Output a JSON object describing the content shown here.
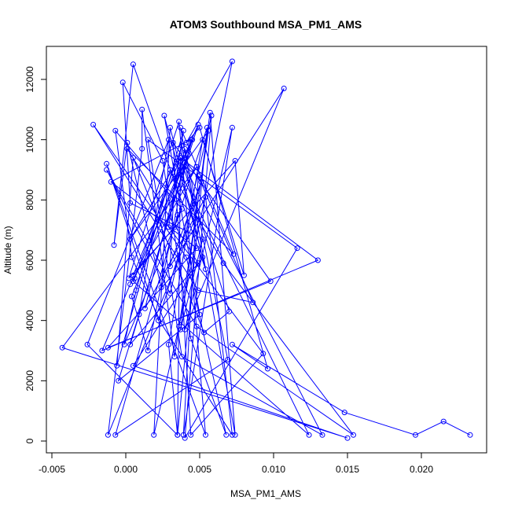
{
  "chart_data": {
    "type": "line",
    "title": "ATOM3 Southbound MSA_PM1_AMS",
    "xlabel": "MSA_PM1_AMS",
    "ylabel": "Altitude (m)",
    "xlim": [
      -0.005,
      0.023
    ],
    "ylim": [
      0,
      12500
    ],
    "xticks": [
      -0.005,
      0.0,
      0.005,
      0.01,
      0.015,
      0.02
    ],
    "xtick_labels": [
      "-0.005",
      "0.000",
      "0.005",
      "0.010",
      "0.015",
      "0.020"
    ],
    "yticks": [
      0,
      2000,
      4000,
      6000,
      8000,
      10000,
      12000
    ],
    "ytick_labels": [
      "0",
      "2000",
      "4000",
      "6000",
      "8000",
      "10000",
      "12000"
    ],
    "grid": false,
    "legend": "none",
    "series_color": "#0000ff",
    "series": [
      {
        "marker": "open-circle",
        "points": [
          [
            0.0233,
            200
          ],
          [
            0.0215,
            650
          ],
          [
            0.0196,
            200
          ],
          [
            0.0148,
            950
          ],
          [
            0.0072,
            3200
          ],
          [
            0.0096,
            2400
          ],
          [
            0.005,
            10400
          ],
          [
            0.0041,
            9900
          ],
          [
            0.0072,
            12600
          ],
          [
            0.0036,
            3800
          ],
          [
            0.0019,
            200
          ],
          [
            0.003,
            10400
          ],
          [
            0.0054,
            5700
          ],
          [
            0.0005,
            12500
          ],
          [
            -0.0008,
            6500
          ],
          [
            0.0001,
            9900
          ],
          [
            0.0024,
            5100
          ],
          [
            0.0051,
            8600
          ],
          [
            0.0022,
            4000
          ],
          [
            -0.0013,
            9200
          ],
          [
            0.0054,
            200
          ],
          [
            0.0036,
            10600
          ],
          [
            0.0002,
            5400
          ],
          [
            0.0074,
            9300
          ],
          [
            0.008,
            5500
          ],
          [
            0.0052,
            10000
          ],
          [
            0.0029,
            3200
          ],
          [
            0.0035,
            200
          ],
          [
            0.0055,
            10400
          ],
          [
            0.0033,
            7100
          ],
          [
            0.0005,
            5500
          ],
          [
            0.0037,
            9400
          ],
          [
            0.0035,
            200
          ],
          [
            -0.0026,
            3200
          ],
          [
            0.0029,
            10000
          ],
          [
            0.0009,
            4200
          ],
          [
            0.0049,
            10500
          ],
          [
            0.0033,
            8700
          ],
          [
            0.003,
            5800
          ],
          [
            0.0107,
            11700
          ],
          [
            0.004,
            3700
          ],
          [
            0.0072,
            10400
          ],
          [
            0.0039,
            200
          ],
          [
            0.0049,
            8800
          ],
          [
            0.0086,
            4600
          ],
          [
            0.0049,
            5000
          ],
          [
            -0.0022,
            10500
          ],
          [
            0.0041,
            6100
          ],
          [
            0.0068,
            200
          ],
          [
            0.0044,
            3400
          ],
          [
            0.0025,
            9300
          ],
          [
            -0.0002,
            11900
          ],
          [
            0.0003,
            7900
          ],
          [
            0.0052,
            6700
          ],
          [
            0.0037,
            3700
          ],
          [
            0.0057,
            10900
          ],
          [
            0.0074,
            200
          ],
          [
            0.0037,
            10400
          ],
          [
            0.0073,
            6200
          ],
          [
            0.0001,
            9700
          ],
          [
            0.0049,
            5900
          ],
          [
            0.0003,
            3200
          ],
          [
            0.0045,
            10000
          ],
          [
            0.0006,
            5400
          ],
          [
            0.0038,
            9800
          ],
          [
            0.0047,
            7400
          ],
          [
            -0.0012,
            200
          ],
          [
            0.0011,
            9700
          ],
          [
            0.0011,
            11000
          ],
          [
            0.0033,
            2800
          ],
          [
            0.0056,
            10300
          ],
          [
            0.0003,
            6700
          ],
          [
            0.0034,
            9200
          ],
          [
            0.0124,
            200
          ],
          [
            0.0005,
            5300
          ],
          [
            0.0042,
            9500
          ],
          [
            0.0004,
            4800
          ],
          [
            0.0015,
            3000
          ],
          [
            0.0044,
            10000
          ],
          [
            -0.001,
            8600
          ],
          [
            0.0048,
            6400
          ],
          [
            -0.0012,
            3100
          ],
          [
            0.0098,
            5300
          ],
          [
            0.0032,
            9900
          ],
          [
            0.0044,
            200
          ],
          [
            0.0093,
            2900
          ],
          [
            0.0029,
            7100
          ],
          [
            0.0039,
            10300
          ],
          [
            -0.0006,
            2500
          ],
          [
            0.0005,
            9400
          ],
          [
            0.0053,
            3600
          ],
          [
            0.007,
            4300
          ],
          [
            0.0037,
            9400
          ],
          [
            0.013,
            6000
          ],
          [
            -0.0016,
            3000
          ],
          [
            0.0003,
            5200
          ],
          [
            0.0048,
            9100
          ],
          [
            -0.0043,
            3100
          ],
          [
            0.015,
            100
          ],
          [
            0.0005,
            2500
          ],
          [
            0.0052,
            6100
          ],
          [
            0.0026,
            10800
          ],
          [
            0.005,
            4200
          ],
          [
            -0.0005,
            2000
          ],
          [
            0.004,
            9100
          ],
          [
            0.0133,
            200
          ],
          [
            0.0038,
            2800
          ],
          [
            0.0015,
            10000
          ],
          [
            0.0116,
            6400
          ],
          [
            0.004,
            100
          ],
          [
            0.0058,
            10800
          ],
          [
            0.003,
            4900
          ],
          [
            -0.0013,
            9000
          ],
          [
            0.0048,
            3800
          ],
          [
            0.0154,
            200
          ],
          [
            0.0066,
            5900
          ],
          [
            0.003,
            9000
          ],
          [
            0.0007,
            5000
          ],
          [
            -0.0001,
            3200
          ],
          [
            0.0038,
            7700
          ],
          [
            -0.0007,
            10300
          ],
          [
            0.0004,
            6100
          ],
          [
            0.0024,
            3900
          ],
          [
            0.0072,
            200
          ],
          [
            0.0054,
            8100
          ],
          [
            0.0013,
            4400
          ],
          [
            0.004,
            9700
          ],
          [
            0.0069,
            2700
          ],
          [
            -0.0007,
            200
          ],
          [
            0.0035,
            7500
          ]
        ]
      }
    ]
  }
}
